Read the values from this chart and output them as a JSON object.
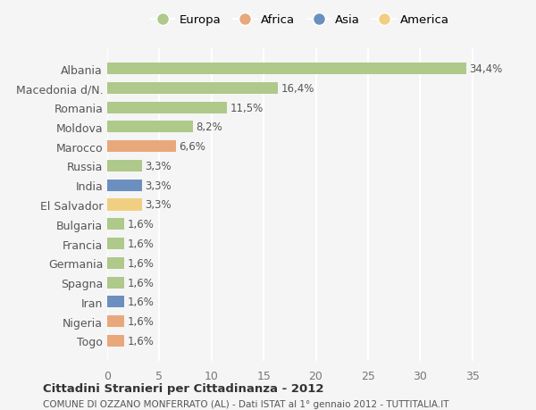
{
  "countries": [
    "Albania",
    "Macedonia d/N.",
    "Romania",
    "Moldova",
    "Marocco",
    "Russia",
    "India",
    "El Salvador",
    "Bulgaria",
    "Francia",
    "Germania",
    "Spagna",
    "Iran",
    "Nigeria",
    "Togo"
  ],
  "values": [
    34.4,
    16.4,
    11.5,
    8.2,
    6.6,
    3.3,
    3.3,
    3.3,
    1.6,
    1.6,
    1.6,
    1.6,
    1.6,
    1.6,
    1.6
  ],
  "labels": [
    "34,4%",
    "16,4%",
    "11,5%",
    "8,2%",
    "6,6%",
    "3,3%",
    "3,3%",
    "3,3%",
    "1,6%",
    "1,6%",
    "1,6%",
    "1,6%",
    "1,6%",
    "1,6%",
    "1,6%"
  ],
  "continents": [
    "Europa",
    "Europa",
    "Europa",
    "Europa",
    "Africa",
    "Europa",
    "Asia",
    "America",
    "Europa",
    "Europa",
    "Europa",
    "Europa",
    "Asia",
    "Africa",
    "Africa"
  ],
  "colors": {
    "Europa": "#aec98a",
    "Africa": "#e8a87c",
    "Asia": "#6b8fbf",
    "America": "#f0d080"
  },
  "legend_order": [
    "Europa",
    "Africa",
    "Asia",
    "America"
  ],
  "background_color": "#f5f5f5",
  "grid_color": "#ffffff",
  "title1": "Cittadini Stranieri per Cittadinanza - 2012",
  "title2": "COMUNE DI OZZANO MONFERRATO (AL) - Dati ISTAT al 1° gennaio 2012 - TUTTITALIA.IT",
  "xlim": [
    0,
    37
  ],
  "xticks": [
    0,
    5,
    10,
    15,
    20,
    25,
    30,
    35
  ]
}
